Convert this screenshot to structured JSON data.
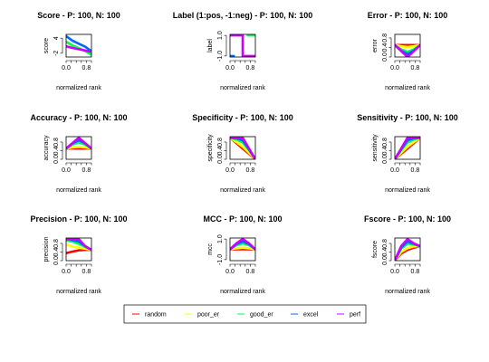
{
  "figure": {
    "legend_placement": "bottom"
  },
  "chart_data": [
    {
      "type": "line",
      "title": "Score - P: 100, N: 100",
      "xlabel": "normalized rank",
      "ylabel": "score",
      "xticks": [
        "0.0",
        "0.8"
      ],
      "yticks": [
        "4",
        "-2"
      ],
      "xlim": [
        0,
        1
      ],
      "ylim": [
        -3.5,
        5.5
      ],
      "series": [
        {
          "name": "random",
          "color": "#ff0000",
          "x": [
            0,
            0.25,
            0.5,
            0.75,
            1
          ],
          "y": [
            2.6,
            1.1,
            0.0,
            -1.1,
            -2.6
          ]
        },
        {
          "name": "poor_er",
          "color": "#ffff00",
          "x": [
            0,
            0.25,
            0.5,
            0.75,
            1
          ],
          "y": [
            2.6,
            1.1,
            0.0,
            -1.1,
            -2.6
          ]
        },
        {
          "name": "good_er",
          "color": "#00ff55",
          "x": [
            0,
            0.25,
            0.5,
            0.75,
            1
          ],
          "y": [
            2.6,
            1.1,
            0.0,
            -1.1,
            -2.6
          ]
        },
        {
          "name": "excel",
          "color": "#0066ff",
          "x": [
            0,
            0.25,
            0.5,
            0.75,
            1
          ],
          "y": [
            4.8,
            3.0,
            1.8,
            0.6,
            -1.2
          ]
        },
        {
          "name": "perf",
          "color": "#cc00ff",
          "x": [
            0,
            0.25,
            0.5,
            0.75,
            1
          ],
          "y": [
            0.8,
            0.1,
            -0.4,
            -0.9,
            -1.4
          ]
        }
      ]
    },
    {
      "type": "line",
      "title": "Label (1:pos, -1:neg) - P: 100, N: 100",
      "xlabel": "normalized rank",
      "ylabel": "label",
      "xticks": [
        "0.0",
        "0.8"
      ],
      "yticks": [
        "1.0",
        "-1.0"
      ],
      "xlim": [
        0,
        1
      ],
      "ylim": [
        -1.1,
        1.1
      ],
      "series": [
        {
          "name": "perf",
          "color": "#cc00ff",
          "x": [
            0,
            0.5,
            0.5,
            1
          ],
          "y": [
            1,
            1,
            -1,
            -1
          ]
        },
        {
          "name": "good_er",
          "color": "#00ff55",
          "x": [
            0.7,
            1
          ],
          "y": [
            1,
            1
          ]
        },
        {
          "name": "excel",
          "color": "#0066ff",
          "x": [
            0,
            0.15
          ],
          "y": [
            -1,
            -1
          ]
        }
      ]
    },
    {
      "type": "line",
      "title": "Error - P: 100, N: 100",
      "xlabel": "normalized rank",
      "ylabel": "error",
      "xticks": [
        "0.0",
        "0.8"
      ],
      "yticks": [
        "0.8",
        "0.4",
        "0.0"
      ],
      "xlim": [
        0,
        1
      ],
      "ylim": [
        0,
        0.95
      ],
      "series": [
        {
          "name": "random",
          "color": "#ff0000",
          "x": [
            0,
            0.25,
            0.5,
            0.75,
            1
          ],
          "y": [
            0.5,
            0.5,
            0.5,
            0.5,
            0.5
          ]
        },
        {
          "name": "poor_er",
          "color": "#ffff00",
          "x": [
            0,
            0.25,
            0.5,
            0.75,
            1
          ],
          "y": [
            0.5,
            0.45,
            0.42,
            0.45,
            0.5
          ]
        },
        {
          "name": "good_er",
          "color": "#00ff55",
          "x": [
            0,
            0.25,
            0.5,
            0.75,
            1
          ],
          "y": [
            0.5,
            0.32,
            0.22,
            0.32,
            0.5
          ]
        },
        {
          "name": "excel",
          "color": "#0066ff",
          "x": [
            0,
            0.25,
            0.5,
            0.75,
            1
          ],
          "y": [
            0.5,
            0.27,
            0.12,
            0.27,
            0.5
          ]
        },
        {
          "name": "perf",
          "color": "#cc00ff",
          "x": [
            0,
            0.25,
            0.5,
            0.75,
            1
          ],
          "y": [
            0.5,
            0.25,
            0.0,
            0.25,
            0.5
          ]
        }
      ]
    },
    {
      "type": "line",
      "title": "Accuracy - P: 100, N: 100",
      "xlabel": "normalized rank",
      "ylabel": "accuracy",
      "xticks": [
        "0.0",
        "0.8"
      ],
      "yticks": [
        "0.8",
        "0.4",
        "0.0"
      ],
      "xlim": [
        0,
        1
      ],
      "ylim": [
        0,
        1.05
      ],
      "series": [
        {
          "name": "random",
          "color": "#ff0000",
          "x": [
            0,
            0.25,
            0.5,
            0.75,
            1
          ],
          "y": [
            0.5,
            0.5,
            0.5,
            0.5,
            0.5
          ]
        },
        {
          "name": "poor_er",
          "color": "#ffff00",
          "x": [
            0,
            0.25,
            0.5,
            0.75,
            1
          ],
          "y": [
            0.5,
            0.55,
            0.58,
            0.55,
            0.5
          ]
        },
        {
          "name": "good_er",
          "color": "#00ff55",
          "x": [
            0,
            0.25,
            0.5,
            0.75,
            1
          ],
          "y": [
            0.5,
            0.68,
            0.78,
            0.68,
            0.5
          ]
        },
        {
          "name": "excel",
          "color": "#0066ff",
          "x": [
            0,
            0.25,
            0.5,
            0.75,
            1
          ],
          "y": [
            0.5,
            0.73,
            0.88,
            0.73,
            0.5
          ]
        },
        {
          "name": "perf",
          "color": "#cc00ff",
          "x": [
            0,
            0.25,
            0.5,
            0.75,
            1
          ],
          "y": [
            0.5,
            0.75,
            1.0,
            0.75,
            0.5
          ]
        }
      ]
    },
    {
      "type": "line",
      "title": "Specificity - P: 100, N: 100",
      "xlabel": "normalized rank",
      "ylabel": "specificity",
      "xticks": [
        "0.0",
        "0.8"
      ],
      "yticks": [
        "0.8",
        "0.4",
        "0.0"
      ],
      "xlim": [
        0,
        1
      ],
      "ylim": [
        0,
        1.05
      ],
      "series": [
        {
          "name": "random",
          "color": "#ff0000",
          "x": [
            0,
            0.25,
            0.5,
            0.75,
            1
          ],
          "y": [
            1.0,
            0.75,
            0.5,
            0.25,
            0.0
          ]
        },
        {
          "name": "poor_er",
          "color": "#ffff00",
          "x": [
            0,
            0.25,
            0.5,
            0.75,
            1
          ],
          "y": [
            1.0,
            0.8,
            0.58,
            0.3,
            0.0
          ]
        },
        {
          "name": "good_er",
          "color": "#00ff55",
          "x": [
            0,
            0.25,
            0.5,
            0.75,
            1
          ],
          "y": [
            1.0,
            0.92,
            0.78,
            0.42,
            0.0
          ]
        },
        {
          "name": "excel",
          "color": "#0066ff",
          "x": [
            0,
            0.25,
            0.5,
            0.75,
            1
          ],
          "y": [
            1.0,
            0.97,
            0.88,
            0.46,
            0.0
          ]
        },
        {
          "name": "perf",
          "color": "#cc00ff",
          "x": [
            0,
            0.25,
            0.5,
            0.75,
            1
          ],
          "y": [
            1.0,
            1.0,
            1.0,
            0.5,
            0.0
          ]
        }
      ]
    },
    {
      "type": "line",
      "title": "Sensitivity - P: 100, N: 100",
      "xlabel": "normalized rank",
      "ylabel": "sensitivity",
      "xticks": [
        "0.0",
        "0.8"
      ],
      "yticks": [
        "0.8",
        "0.4",
        "0.0"
      ],
      "xlim": [
        0,
        1
      ],
      "ylim": [
        0,
        1.05
      ],
      "series": [
        {
          "name": "random",
          "color": "#ff0000",
          "x": [
            0,
            0.25,
            0.5,
            0.75,
            1
          ],
          "y": [
            0.0,
            0.25,
            0.5,
            0.75,
            1.0
          ]
        },
        {
          "name": "poor_er",
          "color": "#ffff00",
          "x": [
            0,
            0.25,
            0.5,
            0.75,
            1
          ],
          "y": [
            0.0,
            0.3,
            0.58,
            0.8,
            1.0
          ]
        },
        {
          "name": "good_er",
          "color": "#00ff55",
          "x": [
            0,
            0.25,
            0.5,
            0.75,
            1
          ],
          "y": [
            0.0,
            0.42,
            0.78,
            0.92,
            1.0
          ]
        },
        {
          "name": "excel",
          "color": "#0066ff",
          "x": [
            0,
            0.25,
            0.5,
            0.75,
            1
          ],
          "y": [
            0.0,
            0.46,
            0.88,
            0.97,
            1.0
          ]
        },
        {
          "name": "perf",
          "color": "#cc00ff",
          "x": [
            0,
            0.25,
            0.5,
            0.75,
            1
          ],
          "y": [
            0.0,
            0.5,
            1.0,
            1.0,
            1.0
          ]
        }
      ]
    },
    {
      "type": "line",
      "title": "Precision - P: 100, N: 100",
      "xlabel": "normalized rank",
      "ylabel": "precision",
      "xticks": [
        "0.0",
        "0.8"
      ],
      "yticks": [
        "0.8",
        "0.4",
        "0.0"
      ],
      "xlim": [
        0,
        1
      ],
      "ylim": [
        0,
        1.05
      ],
      "series": [
        {
          "name": "random",
          "color": "#ff0000",
          "x": [
            0,
            0.25,
            0.5,
            0.75,
            1
          ],
          "y": [
            0.35,
            0.42,
            0.48,
            0.5,
            0.5
          ]
        },
        {
          "name": "poor_er",
          "color": "#ffff00",
          "x": [
            0,
            0.25,
            0.5,
            0.75,
            1
          ],
          "y": [
            0.75,
            0.65,
            0.6,
            0.55,
            0.5
          ]
        },
        {
          "name": "good_er",
          "color": "#00ff55",
          "x": [
            0,
            0.25,
            0.5,
            0.75,
            1
          ],
          "y": [
            0.95,
            0.88,
            0.78,
            0.64,
            0.5
          ]
        },
        {
          "name": "excel",
          "color": "#0066ff",
          "x": [
            0,
            0.25,
            0.5,
            0.75,
            1
          ],
          "y": [
            1.0,
            0.95,
            0.88,
            0.68,
            0.5
          ]
        },
        {
          "name": "perf",
          "color": "#cc00ff",
          "x": [
            0,
            0.25,
            0.5,
            0.75,
            1
          ],
          "y": [
            1.0,
            1.0,
            1.0,
            0.67,
            0.5
          ]
        }
      ]
    },
    {
      "type": "line",
      "title": "MCC - P: 100, N: 100",
      "xlabel": "normalized rank",
      "ylabel": "mcc",
      "xticks": [
        "0.0",
        "0.8"
      ],
      "yticks": [
        "1.0",
        "-1.0"
      ],
      "xlim": [
        0,
        1
      ],
      "ylim": [
        -1.1,
        1.1
      ],
      "series": [
        {
          "name": "random",
          "color": "#ff0000",
          "x": [
            0,
            0.25,
            0.5,
            0.75,
            1
          ],
          "y": [
            0.0,
            0.0,
            0.0,
            0.0,
            0.0
          ]
        },
        {
          "name": "poor_er",
          "color": "#ffff00",
          "x": [
            0,
            0.25,
            0.5,
            0.75,
            1
          ],
          "y": [
            0.0,
            0.1,
            0.16,
            0.1,
            0.0
          ]
        },
        {
          "name": "good_er",
          "color": "#00ff55",
          "x": [
            0,
            0.25,
            0.5,
            0.75,
            1
          ],
          "y": [
            0.0,
            0.4,
            0.56,
            0.4,
            0.0
          ]
        },
        {
          "name": "excel",
          "color": "#0066ff",
          "x": [
            0,
            0.25,
            0.5,
            0.75,
            1
          ],
          "y": [
            0.0,
            0.5,
            0.76,
            0.5,
            0.0
          ]
        },
        {
          "name": "perf",
          "color": "#cc00ff",
          "x": [
            0,
            0.25,
            0.5,
            0.75,
            1
          ],
          "y": [
            0.0,
            0.58,
            1.0,
            0.58,
            0.0
          ]
        }
      ]
    },
    {
      "type": "line",
      "title": "Fscore - P: 100, N: 100",
      "xlabel": "normalized rank",
      "ylabel": "fscore",
      "xticks": [
        "0.0",
        "0.8"
      ],
      "yticks": [
        "0.8",
        "0.4",
        "0.0"
      ],
      "xlim": [
        0,
        1
      ],
      "ylim": [
        0,
        1.05
      ],
      "series": [
        {
          "name": "random",
          "color": "#ff0000",
          "x": [
            0,
            0.25,
            0.5,
            0.75,
            1
          ],
          "y": [
            0.0,
            0.33,
            0.5,
            0.6,
            0.67
          ]
        },
        {
          "name": "poor_er",
          "color": "#ffff00",
          "x": [
            0,
            0.25,
            0.5,
            0.75,
            1
          ],
          "y": [
            0.0,
            0.4,
            0.58,
            0.66,
            0.67
          ]
        },
        {
          "name": "good_er",
          "color": "#00ff55",
          "x": [
            0,
            0.25,
            0.5,
            0.75,
            1
          ],
          "y": [
            0.0,
            0.55,
            0.78,
            0.74,
            0.67
          ]
        },
        {
          "name": "excel",
          "color": "#0066ff",
          "x": [
            0,
            0.25,
            0.5,
            0.75,
            1
          ],
          "y": [
            0.0,
            0.61,
            0.88,
            0.78,
            0.67
          ]
        },
        {
          "name": "perf",
          "color": "#cc00ff",
          "x": [
            0,
            0.25,
            0.5,
            0.75,
            1
          ],
          "y": [
            0.0,
            0.67,
            1.0,
            0.8,
            0.67
          ]
        }
      ]
    }
  ],
  "legend": {
    "entries": [
      {
        "label": "random",
        "color": "#ff0000"
      },
      {
        "label": "poor_er",
        "color": "#ffff00"
      },
      {
        "label": "good_er",
        "color": "#00ff55"
      },
      {
        "label": "excel",
        "color": "#0066ff"
      },
      {
        "label": "perf",
        "color": "#cc00ff"
      }
    ]
  }
}
